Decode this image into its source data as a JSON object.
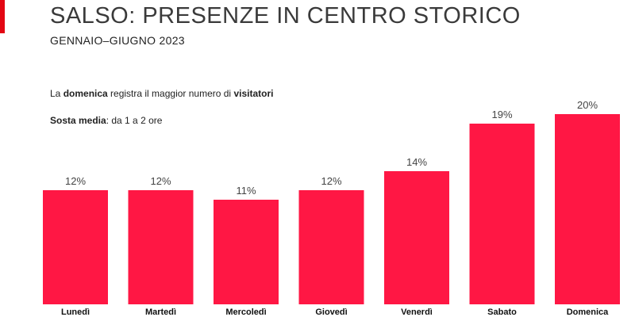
{
  "header": {
    "title": "SALSO: PRESENZE IN CENTRO STORICO",
    "subtitle": "GENNAIO–GIUGNO 2023"
  },
  "notes": {
    "line1": {
      "p1": "La ",
      "b1": "domenica",
      "p2": " registra il maggior numero di ",
      "b2": "visitatori"
    },
    "line2": {
      "b1": "Sosta media",
      "p1": ": da 1 a 2 ore"
    }
  },
  "colors": {
    "bar": "#ff1744",
    "accent": "#e30613"
  },
  "chart_data": {
    "type": "bar",
    "categories": [
      "Lunedì",
      "Martedì",
      "Mercoledì",
      "Giovedì",
      "Venerdì",
      "Sabato",
      "Domenica"
    ],
    "values": [
      12,
      12,
      11,
      12,
      14,
      19,
      20
    ],
    "value_labels": [
      "12%",
      "12%",
      "11%",
      "12%",
      "14%",
      "19%",
      "20%"
    ],
    "ylim": [
      0,
      20
    ],
    "grid": false,
    "legend": false
  }
}
